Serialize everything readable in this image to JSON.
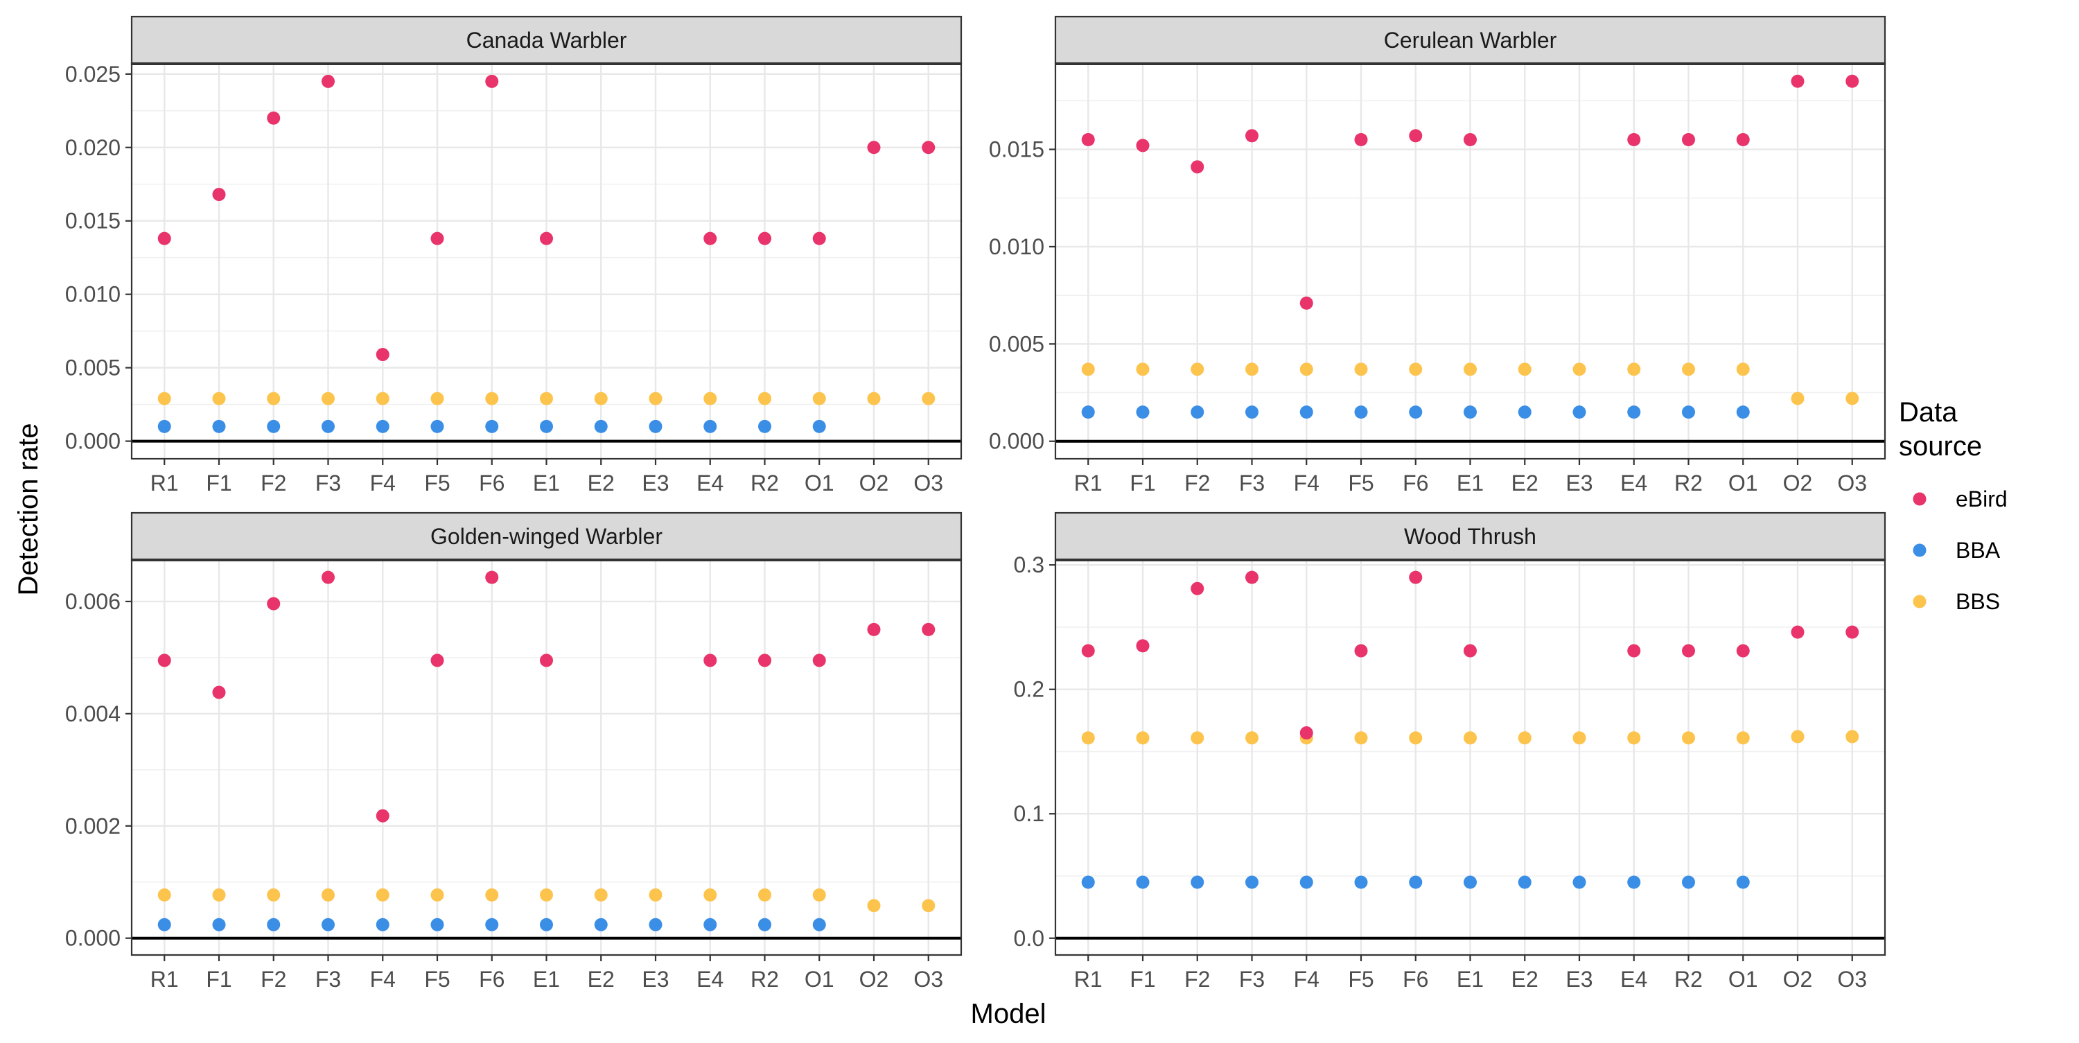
{
  "chart_data": {
    "type": "scatter",
    "xlabel": "Model",
    "ylabel": "Detection rate",
    "categories": [
      "R1",
      "F1",
      "F2",
      "F3",
      "F4",
      "F5",
      "F6",
      "E1",
      "E2",
      "E3",
      "E4",
      "R2",
      "O1",
      "O2",
      "O3"
    ],
    "legend": {
      "title_lines": [
        "Data",
        "source"
      ],
      "position": "right",
      "entries": [
        {
          "name": "eBird",
          "color": "#E8336B"
        },
        {
          "name": "BBA",
          "color": "#3A8EE6"
        },
        {
          "name": "BBS",
          "color": "#FCC44D"
        }
      ]
    },
    "grid": true,
    "panels": [
      {
        "title": "Canada Warbler",
        "ylim": [
          -0.0012,
          0.0257
        ],
        "yticks": [
          0.0,
          0.005,
          0.01,
          0.015,
          0.02,
          0.025
        ],
        "ytick_labels": [
          "0.000",
          "0.005",
          "0.010",
          "0.015",
          "0.020",
          "0.025"
        ],
        "series": [
          {
            "name": "eBird",
            "values": [
              0.0138,
              0.0168,
              0.022,
              0.0245,
              0.0059,
              0.0138,
              0.0245,
              0.0138,
              null,
              null,
              0.0138,
              0.0138,
              0.0138,
              0.02,
              0.02
            ]
          },
          {
            "name": "BBA",
            "values": [
              0.001,
              0.001,
              0.001,
              0.001,
              0.001,
              0.001,
              0.001,
              0.001,
              0.001,
              0.001,
              0.001,
              0.001,
              0.001,
              null,
              null
            ]
          },
          {
            "name": "BBS",
            "values": [
              0.0029,
              0.0029,
              0.0029,
              0.0029,
              0.0029,
              0.0029,
              0.0029,
              0.0029,
              0.0029,
              0.0029,
              0.0029,
              0.0029,
              0.0029,
              0.0029,
              0.0029
            ]
          }
        ]
      },
      {
        "title": "Cerulean Warbler",
        "ylim": [
          -0.0009,
          0.0194
        ],
        "yticks": [
          0.0,
          0.005,
          0.01,
          0.015
        ],
        "ytick_labels": [
          "0.000",
          "0.005",
          "0.010",
          "0.015"
        ],
        "series": [
          {
            "name": "eBird",
            "values": [
              0.0155,
              0.0152,
              0.0141,
              0.0157,
              0.0071,
              0.0155,
              0.0157,
              0.0155,
              null,
              null,
              0.0155,
              0.0155,
              0.0155,
              0.0185,
              0.0185
            ]
          },
          {
            "name": "BBA",
            "values": [
              0.0015,
              0.0015,
              0.0015,
              0.0015,
              0.0015,
              0.0015,
              0.0015,
              0.0015,
              0.0015,
              0.0015,
              0.0015,
              0.0015,
              0.0015,
              null,
              null
            ]
          },
          {
            "name": "BBS",
            "values": [
              0.0037,
              0.0037,
              0.0037,
              0.0037,
              0.0037,
              0.0037,
              0.0037,
              0.0037,
              0.0037,
              0.0037,
              0.0037,
              0.0037,
              0.0037,
              0.0022,
              0.0022
            ]
          }
        ]
      },
      {
        "title": "Golden-winged Warbler",
        "ylim": [
          -0.0003,
          0.00674
        ],
        "yticks": [
          0.0,
          0.002,
          0.004,
          0.006
        ],
        "ytick_labels": [
          "0.000",
          "0.002",
          "0.004",
          "0.006"
        ],
        "series": [
          {
            "name": "eBird",
            "values": [
              0.00495,
              0.00438,
              0.00596,
              0.00643,
              0.00218,
              0.00495,
              0.00643,
              0.00495,
              null,
              null,
              0.00495,
              0.00495,
              0.00495,
              0.0055,
              0.0055
            ]
          },
          {
            "name": "BBA",
            "values": [
              0.00024,
              0.00024,
              0.00024,
              0.00024,
              0.00024,
              0.00024,
              0.00024,
              0.00024,
              0.00024,
              0.00024,
              0.00024,
              0.00024,
              0.00024,
              null,
              null
            ]
          },
          {
            "name": "BBS",
            "values": [
              0.00077,
              0.00077,
              0.00077,
              0.00077,
              0.00077,
              0.00077,
              0.00077,
              0.00077,
              0.00077,
              0.00077,
              0.00077,
              0.00077,
              0.00077,
              0.00058,
              0.00058
            ]
          }
        ]
      },
      {
        "title": "Wood Thrush",
        "ylim": [
          -0.0135,
          0.304
        ],
        "yticks": [
          0.0,
          0.1,
          0.2,
          0.3
        ],
        "ytick_labels": [
          "0.0",
          "0.1",
          "0.2",
          "0.3"
        ],
        "series": [
          {
            "name": "eBird",
            "values": [
              0.231,
              0.235,
              0.281,
              0.29,
              0.165,
              0.231,
              0.29,
              0.231,
              null,
              null,
              0.231,
              0.231,
              0.231,
              0.246,
              0.246
            ]
          },
          {
            "name": "BBA",
            "values": [
              0.045,
              0.045,
              0.045,
              0.045,
              0.045,
              0.045,
              0.045,
              0.045,
              0.045,
              0.045,
              0.045,
              0.045,
              0.045,
              null,
              null
            ]
          },
          {
            "name": "BBS",
            "values": [
              0.161,
              0.161,
              0.161,
              0.161,
              0.161,
              0.161,
              0.161,
              0.161,
              0.161,
              0.161,
              0.161,
              0.161,
              0.161,
              0.162,
              0.162
            ]
          }
        ]
      }
    ]
  }
}
